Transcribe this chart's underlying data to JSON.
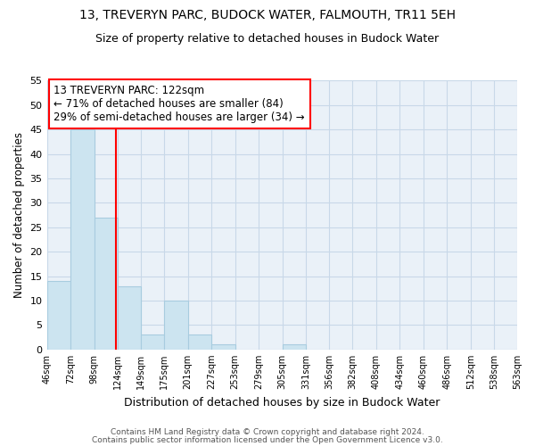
{
  "title": "13, TREVERYN PARC, BUDOCK WATER, FALMOUTH, TR11 5EH",
  "subtitle": "Size of property relative to detached houses in Budock Water",
  "xlabel": "Distribution of detached houses by size in Budock Water",
  "ylabel": "Number of detached properties",
  "bin_edges": [
    46,
    72,
    98,
    124,
    149,
    175,
    201,
    227,
    253,
    279,
    305,
    331,
    356,
    382,
    408,
    434,
    460,
    486,
    512,
    538,
    563
  ],
  "bin_labels": [
    "46sqm",
    "72sqm",
    "98sqm",
    "124sqm",
    "149sqm",
    "175sqm",
    "201sqm",
    "227sqm",
    "253sqm",
    "279sqm",
    "305sqm",
    "331sqm",
    "356sqm",
    "382sqm",
    "408sqm",
    "434sqm",
    "460sqm",
    "486sqm",
    "512sqm",
    "538sqm",
    "563sqm"
  ],
  "bar_heights": [
    14,
    45,
    27,
    13,
    3,
    10,
    3,
    1,
    0,
    0,
    1,
    0,
    0,
    0,
    0,
    0,
    0,
    0,
    0,
    0
  ],
  "bar_color": "#cce4f0",
  "bar_edge_color": "#a8ccdf",
  "grid_color": "#c8d8e8",
  "property_line_x": 122,
  "property_line_color": "red",
  "ylim": [
    0,
    55
  ],
  "yticks": [
    0,
    5,
    10,
    15,
    20,
    25,
    30,
    35,
    40,
    45,
    50,
    55
  ],
  "annotation_title": "13 TREVERYN PARC: 122sqm",
  "annotation_line1": "← 71% of detached houses are smaller (84)",
  "annotation_line2": "29% of semi-detached houses are larger (34) →",
  "annotation_box_color": "white",
  "annotation_box_edge": "red",
  "footnote1": "Contains HM Land Registry data © Crown copyright and database right 2024.",
  "footnote2": "Contains public sector information licensed under the Open Government Licence v3.0.",
  "bg_color": "white",
  "plot_bg_color": "#eaf1f8"
}
